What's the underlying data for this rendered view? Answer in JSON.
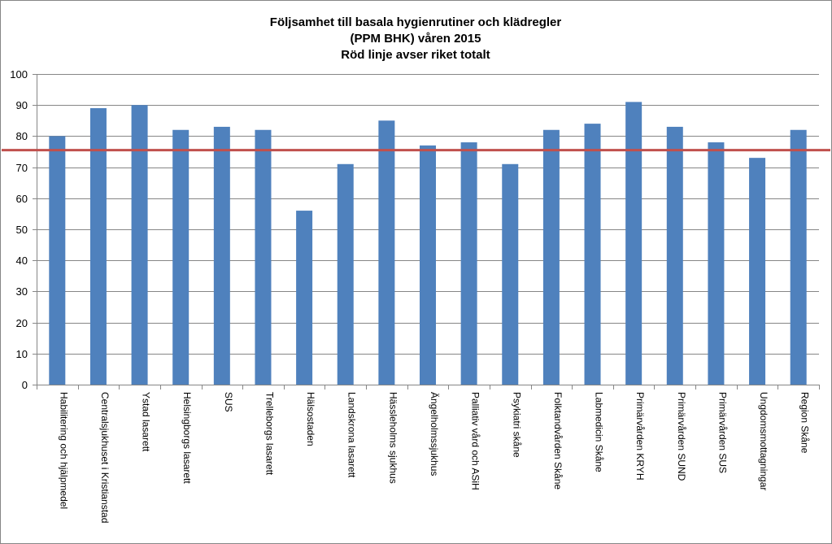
{
  "chart_data": {
    "type": "bar",
    "title_lines": [
      "Följsamhet till basala hygienrutiner och klädregler",
      "(PPM BHK) våren 2015",
      "Röd linje avser riket totalt"
    ],
    "categories": [
      "Habilitering och hjälpmedel",
      "Centralsjukhuset i Kristianstad",
      "Ystad lasarett",
      "Helsingborgs lasarett",
      "SUS",
      "Trelleborgs lasarett",
      "Hälsostaden",
      "Landskrona lasarett",
      "Hässleholms sjukhus",
      "Ängelholmssjukhus",
      "Palliativ vård och ASiH",
      "Psykiatri skåne",
      "Folktandvården Skåne",
      "Labmedicin Skåne",
      "Primärvården KRYH",
      "Primärvården SUND",
      "Primärvården SUS",
      "Ungdomsmottagningar",
      "Region Skåne"
    ],
    "values": [
      80,
      89,
      90,
      82,
      83,
      82,
      56,
      71,
      85,
      77,
      78,
      71,
      82,
      84,
      91,
      83,
      78,
      73,
      82
    ],
    "reference_line_value": 75.5,
    "ylim": [
      0,
      100
    ],
    "yticks": [
      0,
      10,
      20,
      30,
      40,
      50,
      60,
      70,
      80,
      90,
      100
    ],
    "grid": true,
    "legend": "none",
    "colors": {
      "bar": "#4f81bd",
      "reference_line": "#c0504d",
      "grid": "#868686",
      "axis": "#868686"
    }
  }
}
